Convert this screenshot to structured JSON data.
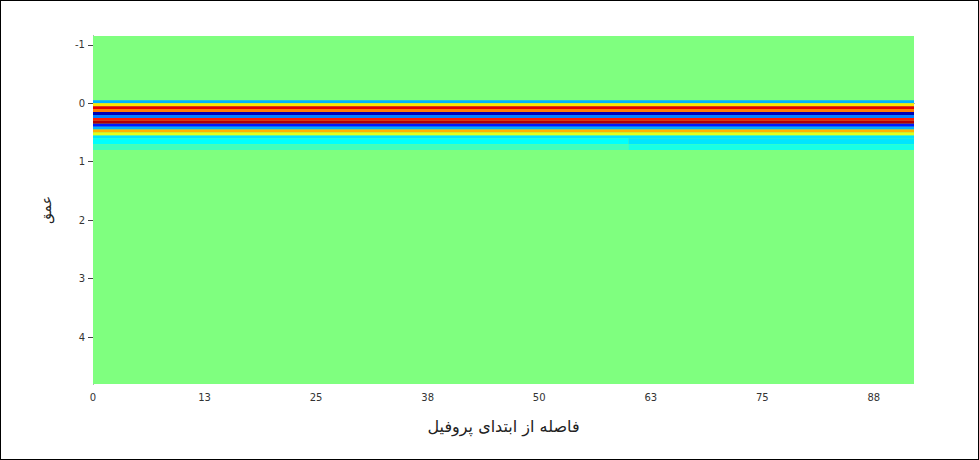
{
  "chart_data": {
    "type": "heatmap",
    "x_label": "فاصله از ابتدای پروفیل",
    "y_label": "عمق",
    "xlim": [
      0,
      92
    ],
    "xticks": [
      0,
      {
        "value": 12.5,
        "label": "13"
      },
      25,
      {
        "value": 37.5,
        "label": "38"
      },
      50,
      {
        "value": 62.5,
        "label": "63"
      },
      75,
      {
        "value": 87.5,
        "label": "88"
      }
    ],
    "ylim": [
      -1.15,
      4.8
    ],
    "yticks": [
      -1,
      0,
      1,
      2,
      3,
      4
    ],
    "zlim": [
      -1,
      1
    ],
    "cells": [
      {
        "x": [
          0,
          92
        ],
        "y": [
          -1.15,
          4.8
        ],
        "value": 0
      },
      {
        "x": [
          0,
          92
        ],
        "y": [
          -0.05,
          0
        ],
        "value": -0.4
      },
      {
        "x": [
          0,
          92
        ],
        "y": [
          0,
          0.05
        ],
        "value": 0.3
      },
      {
        "x": [
          0,
          92
        ],
        "y": [
          0.05,
          0.1
        ],
        "value": 0.8
      },
      {
        "x": [
          0,
          92
        ],
        "y": [
          0.1,
          0.15
        ],
        "value": 0.5
      },
      {
        "x": [
          0,
          92
        ],
        "y": [
          0.15,
          0.2
        ],
        "value": -0.9
      },
      {
        "x": [
          0,
          92
        ],
        "y": [
          0.2,
          0.25
        ],
        "value": -0.5
      },
      {
        "x": [
          0,
          92
        ],
        "y": [
          0.25,
          0.3
        ],
        "value": 0.7
      },
      {
        "x": [
          0,
          92
        ],
        "y": [
          0.3,
          0.35
        ],
        "value": 0.9
      },
      {
        "x": [
          0,
          92
        ],
        "y": [
          0.35,
          0.4
        ],
        "value": -0.7
      },
      {
        "x": [
          0,
          92
        ],
        "y": [
          0.4,
          0.45
        ],
        "value": -0.4
      },
      {
        "x": [
          0,
          92
        ],
        "y": [
          0.45,
          0.5
        ],
        "value": 0.4
      },
      {
        "x": [
          0,
          92
        ],
        "y": [
          0.5,
          0.55
        ],
        "value": 0.2
      },
      {
        "x": [
          0,
          92
        ],
        "y": [
          0.55,
          0.6
        ],
        "value": -0.3
      },
      {
        "x": [
          0,
          60
        ],
        "y": [
          0.6,
          0.7
        ],
        "value": -0.25
      },
      {
        "x": [
          60,
          92
        ],
        "y": [
          0.6,
          0.7
        ],
        "value": -0.3
      },
      {
        "x": [
          0,
          60
        ],
        "y": [
          0.7,
          0.8
        ],
        "value": -0.12
      },
      {
        "x": [
          60,
          92
        ],
        "y": [
          0.7,
          0.8
        ],
        "value": -0.2
      }
    ],
    "grid": false
  }
}
